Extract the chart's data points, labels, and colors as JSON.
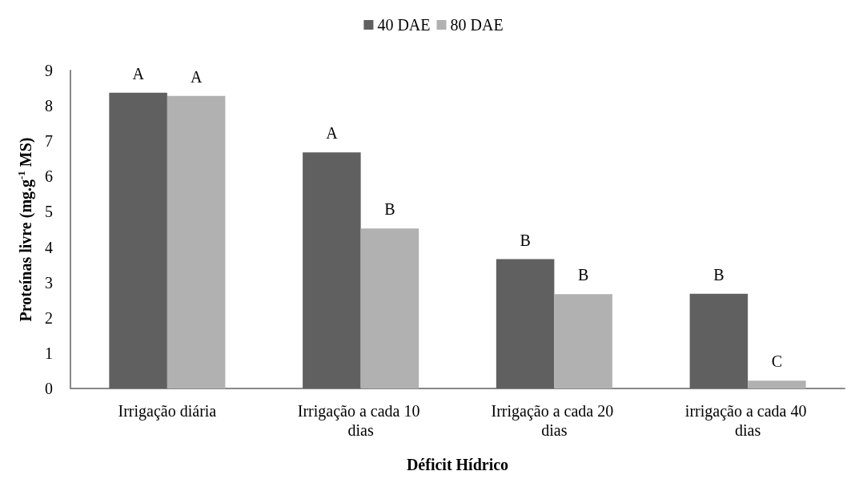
{
  "chart_data": {
    "type": "bar",
    "xlabel": "Déficit Hídrico",
    "ylabel": "Proteínas livre (mg.g$^{-1}$ MS)",
    "categories": [
      "Irrigação diária",
      "Irrigação a cada 10 dias",
      "Irrigação a cada 20 dias",
      "irrigação a cada 40 dias"
    ],
    "series": [
      {
        "name": "40 DAE",
        "color": "#606060",
        "values": [
          8.37,
          6.68,
          3.66,
          2.68
        ],
        "value_labels": [
          "A",
          "A",
          "B",
          "B"
        ]
      },
      {
        "name": "80 DAE",
        "color": "#b1b1b1",
        "values": [
          8.28,
          4.53,
          2.67,
          0.22
        ],
        "value_labels": [
          "A",
          "B",
          "B",
          "C"
        ]
      }
    ],
    "ylim": [
      0,
      9
    ],
    "yticks": [
      0,
      1,
      2,
      3,
      4,
      5,
      6,
      7,
      8,
      9
    ],
    "grid": false,
    "legend": "top"
  }
}
